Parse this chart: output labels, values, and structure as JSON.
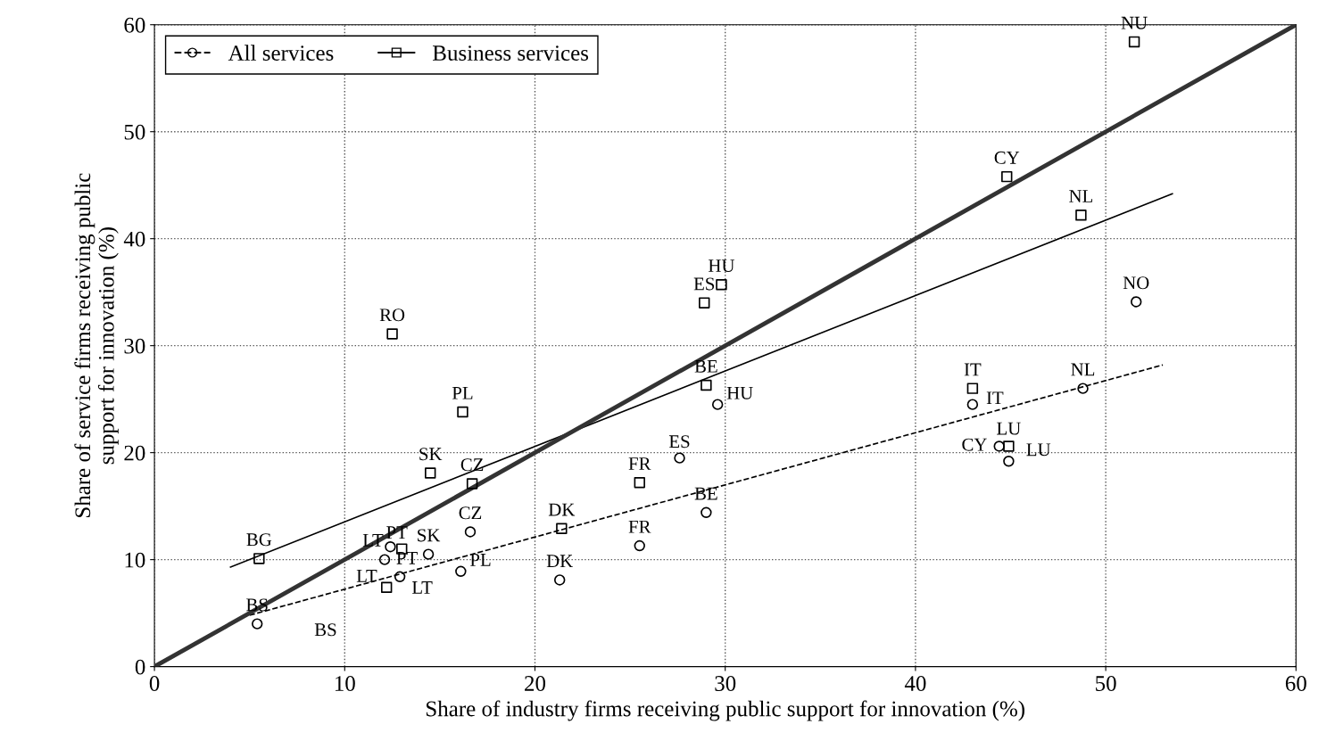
{
  "chart_data": {
    "type": "scatter",
    "xlabel": "Share of industry firms receiving public support for innovation (%)",
    "ylabel": "Share of service firms receiving public\nsupport for innovation (%)",
    "xlim": [
      0,
      60
    ],
    "ylim": [
      0,
      60
    ],
    "xticks": [
      0,
      10,
      20,
      30,
      40,
      50,
      60
    ],
    "yticks": [
      0,
      10,
      20,
      30,
      40,
      50,
      60
    ],
    "grid": true,
    "legend": "top left",
    "series": [
      {
        "name": "All services",
        "color": "#000000",
        "marker": "circle",
        "line_style": "dashed",
        "x": [
          51.6,
          48.8,
          43.0,
          29.6,
          27.6,
          29.0,
          25.5,
          21.3,
          16.6,
          14.4,
          16.1,
          12.4,
          12.1,
          12.9,
          5.4,
          44.4,
          44.9
        ],
        "values": [
          34.1,
          26.0,
          24.5,
          24.5,
          19.5,
          14.4,
          11.3,
          8.1,
          12.6,
          10.5,
          8.9,
          11.2,
          10.0,
          8.4,
          4.0,
          20.6,
          19.2
        ],
        "value_labels": [
          "NO",
          "NL",
          "IT",
          "HU",
          "ES",
          "BE",
          "FR",
          "DK",
          "CZ",
          "SK",
          "PL",
          "LT",
          "PT",
          "LT",
          "BS",
          "CY",
          "LU"
        ]
      },
      {
        "name": "Business services",
        "color": "#000000",
        "marker": "square",
        "line_style": "solid",
        "x": [
          51.5,
          44.8,
          48.7,
          29.8,
          28.9,
          12.5,
          29.0,
          43.0,
          16.2,
          14.5,
          16.7,
          25.5,
          21.4,
          5.5,
          13.0,
          12.2,
          44.9
        ],
        "values": [
          58.4,
          45.8,
          42.2,
          35.7,
          34.0,
          31.1,
          26.3,
          26.0,
          23.8,
          18.1,
          17.1,
          17.2,
          12.9,
          10.1,
          11.0,
          7.4,
          20.6
        ],
        "value_labels": [
          "NU",
          "CY",
          "NL",
          "HU",
          "ES",
          "RO",
          "BE",
          "IT",
          "PL",
          "SK",
          "CZ",
          "FR",
          "DK",
          "BG",
          "PT",
          "LT",
          "LU"
        ]
      },
      {
        "type": "line",
        "color": "#000000",
        "line_style": "dashed",
        "marker": "none",
        "x": [
          5,
          53
        ],
        "values": [
          4.8,
          28.2
        ]
      },
      {
        "type": "line",
        "color": "#000000",
        "line_style": "solid",
        "marker": "none",
        "x": [
          4,
          53.5
        ],
        "values": [
          9.3,
          44.2
        ]
      },
      {
        "type": "line",
        "color": "#333333",
        "line_style": "solid",
        "marker": "none",
        "x": [
          0,
          60
        ],
        "values": [
          0,
          60
        ]
      }
    ],
    "annotations": [
      "BS"
    ]
  }
}
